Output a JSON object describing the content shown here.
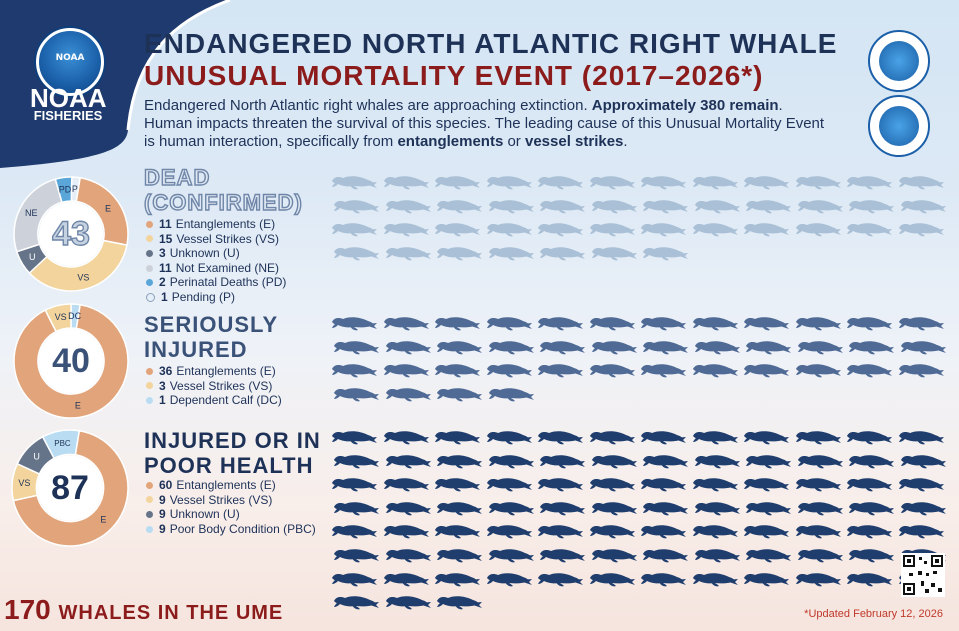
{
  "header": {
    "agency_name": "NOAA",
    "agency_sub": "FISHERIES",
    "logo_text": "NOAA",
    "title_line1": "ENDANGERED NORTH ATLANTIC RIGHT WHALE",
    "title_line2": "UNUSUAL MORTALITY EVENT (2017–2026*)",
    "intro_1": "Endangered North Atlantic right whales are approaching extinction. ",
    "intro_bold_1": "Approximately 380 remain",
    "intro_2": ". Human impacts threaten the survival of this species. The leading cause of this Unusual Mortality Event is human interaction, specifically from ",
    "intro_bold_2": "entanglements",
    "intro_3": " or ",
    "intro_bold_3": "vessel strikes",
    "intro_4": "."
  },
  "colors": {
    "navy": "#1e3258",
    "maroon": "#8c1c1c",
    "entanglement": "#e2a47a",
    "vessel": "#f2d49c",
    "unknown": "#66748a",
    "not_examined": "#cdd2da",
    "perinatal": "#5aa6d8",
    "pending": "#e6eef7",
    "dead_whale": "#a9c0d6",
    "injured_whale": "#4e6a95",
    "poor_whale": "#1f3e6e"
  },
  "chart_data": [
    {
      "type": "pie",
      "title": "DEAD (CONFIRMED)",
      "total": 43,
      "slices": [
        {
          "code": "E",
          "label": "Entanglements (E)",
          "value": 11,
          "color": "#e2a47a"
        },
        {
          "code": "VS",
          "label": "Vessel Strikes (VS)",
          "value": 15,
          "color": "#f2d49c"
        },
        {
          "code": "U",
          "label": "Unknown (U)",
          "value": 3,
          "color": "#66748a"
        },
        {
          "code": "NE",
          "label": "Not Examined (NE)",
          "value": 11,
          "color": "#cdd2da"
        },
        {
          "code": "PD",
          "label": "Perinatal Deaths (PD)",
          "value": 2,
          "color": "#5aa6d8"
        },
        {
          "code": "P",
          "label": "Pending (P)",
          "value": 1,
          "color": "#e6eef7"
        }
      ]
    },
    {
      "type": "pie",
      "title": "SERIOUSLY INJURED",
      "total": 40,
      "slices": [
        {
          "code": "E",
          "label": "Entanglements (E)",
          "value": 36,
          "color": "#e2a47a"
        },
        {
          "code": "VS",
          "label": "Vessel Strikes (VS)",
          "value": 3,
          "color": "#f2d49c"
        },
        {
          "code": "DC",
          "label": "Dependent Calf (DC)",
          "value": 1,
          "color": "#b9dcf2"
        }
      ]
    },
    {
      "type": "pie",
      "title": "INJURED OR IN POOR HEALTH",
      "total": 87,
      "slices": [
        {
          "code": "E",
          "label": "Entanglements (E)",
          "value": 60,
          "color": "#e2a47a"
        },
        {
          "code": "VS",
          "label": "Vessel Strikes (VS)",
          "value": 9,
          "color": "#f2d49c"
        },
        {
          "code": "U",
          "label": "Unknown (U)",
          "value": 9,
          "color": "#66748a"
        },
        {
          "code": "PBC",
          "label": "Poor Body Condition (PBC)",
          "value": 9,
          "color": "#b9dcf2"
        }
      ]
    }
  ],
  "sections": [
    {
      "title_line1": "DEAD",
      "title_line2": "(CONFIRMED)",
      "total": "43",
      "whale_count": 43
    },
    {
      "title_line1": "SERIOUSLY",
      "title_line2": "INJURED",
      "total": "40",
      "whale_count": 40
    },
    {
      "title_line1": "INJURED OR IN",
      "title_line2": "POOR HEALTH",
      "total": "87",
      "whale_count": 87
    }
  ],
  "footer": {
    "total": "170",
    "label": "WHALES IN THE UME",
    "updated": "*Updated February 12, 2026"
  }
}
